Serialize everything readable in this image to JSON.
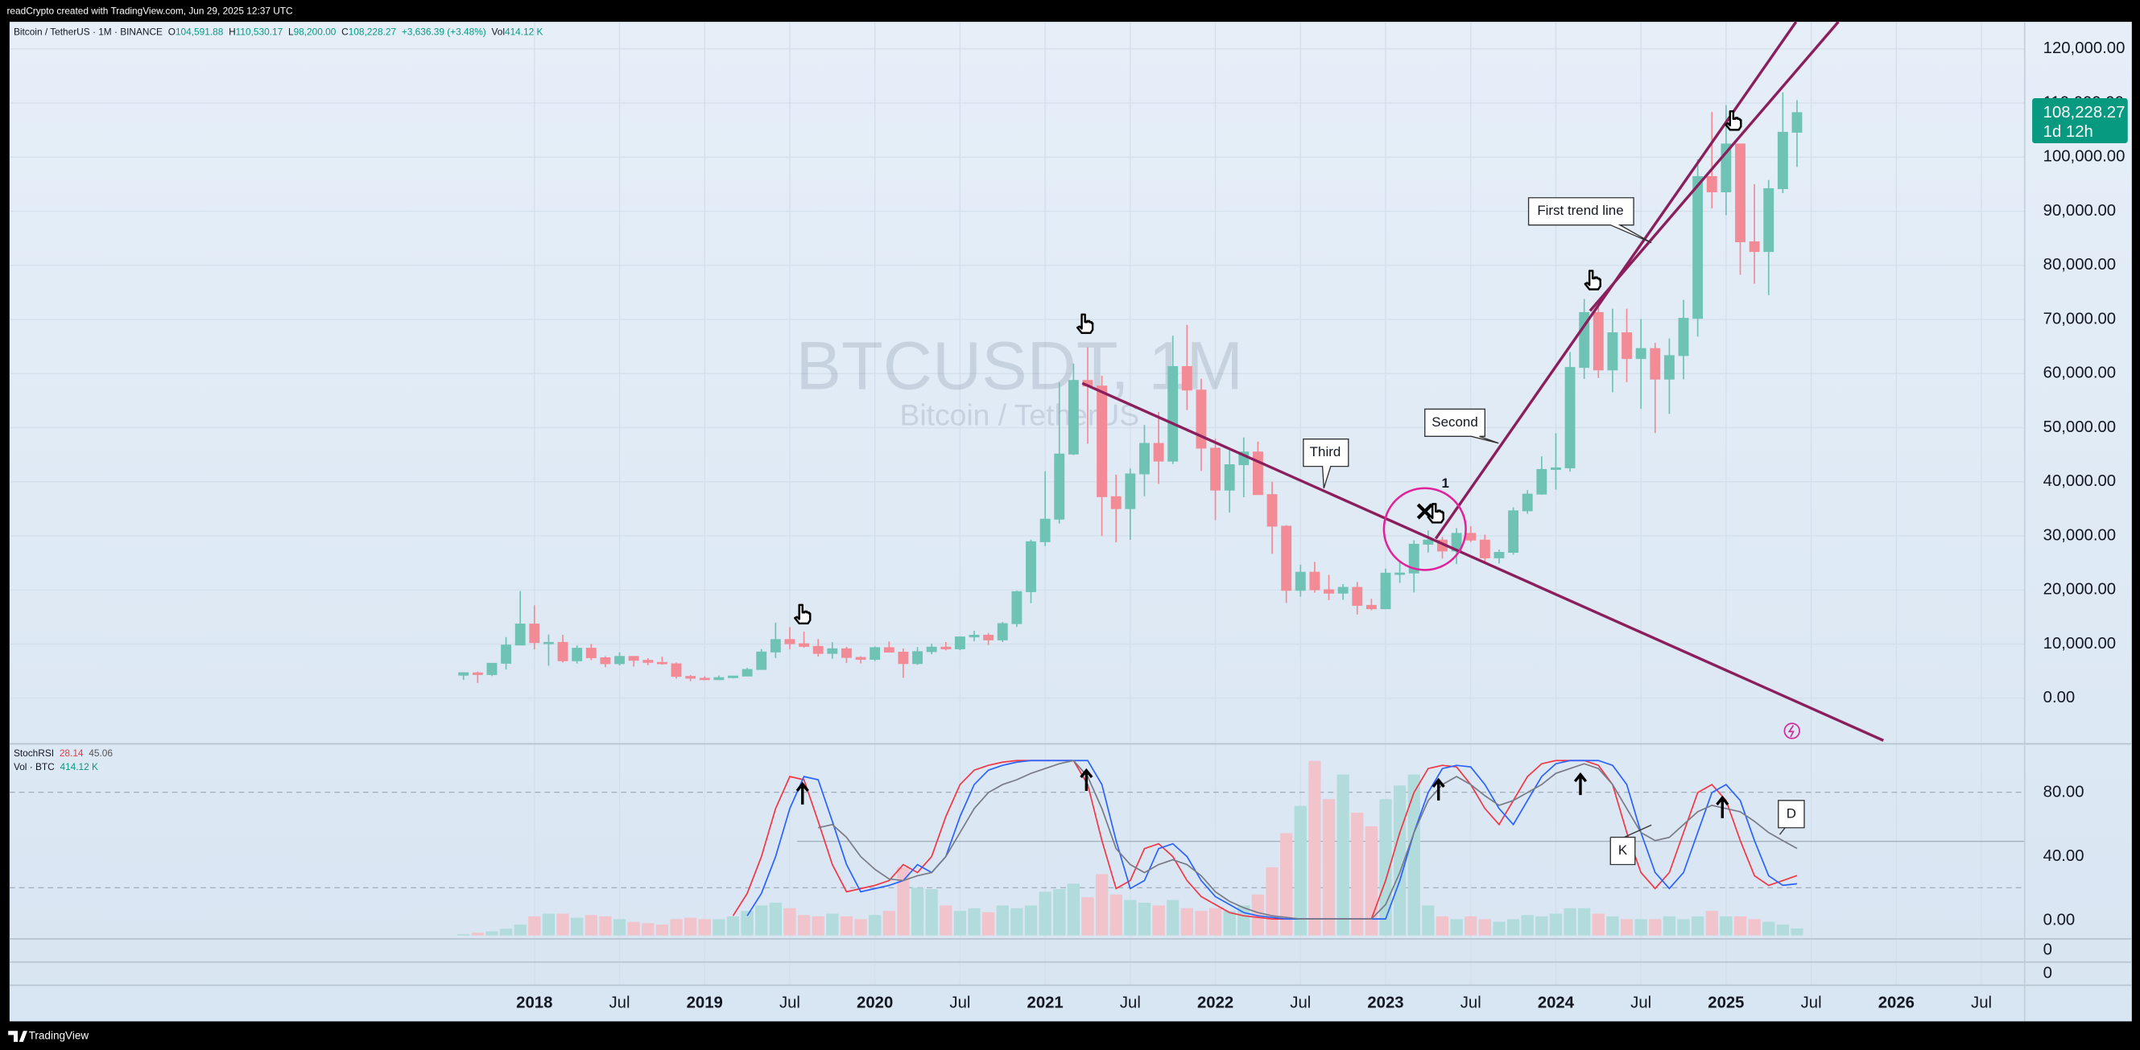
{
  "header": {
    "credit": "readCrypto created with TradingView.com, Jun 29, 2025 12:37 UTC",
    "brand": "TradingView"
  },
  "chart_data": [
    {
      "type": "candlestick",
      "title": "BTCUSDT, 1M",
      "subtitle": "Bitcoin / TetherUS",
      "legend": {
        "symbol": "Bitcoin / TetherUS · 1M · BINANCE",
        "items": [
          {
            "key": "O",
            "value": "104,591.88"
          },
          {
            "key": "H",
            "value": "110,530.17"
          },
          {
            "key": "L",
            "value": "98,200.00"
          },
          {
            "key": "C",
            "value": "108,228.27"
          }
        ],
        "change": "+3,636.39 (+3.48%)",
        "volume_key": "Vol"
      },
      "last_price_label": "108,228.27",
      "countdown": "1d 12h",
      "annotations": [
        {
          "text": "First trend line"
        },
        {
          "text": "Second"
        },
        {
          "text": "Third"
        },
        {
          "text": "1"
        }
      ],
      "x": [
        "2017-08",
        "2017-09",
        "2017-10",
        "2017-11",
        "2017-12",
        "2018-01",
        "2018-02",
        "2018-03",
        "2018-04",
        "2018-05",
        "2018-06",
        "2018-07",
        "2018-08",
        "2018-09",
        "2018-10",
        "2018-11",
        "2018-12",
        "2019-01",
        "2019-02",
        "2019-03",
        "2019-04",
        "2019-05",
        "2019-06",
        "2019-07",
        "2019-08",
        "2019-09",
        "2019-10",
        "2019-11",
        "2019-12",
        "2020-01",
        "2020-02",
        "2020-03",
        "2020-04",
        "2020-05",
        "2020-06",
        "2020-07",
        "2020-08",
        "2020-09",
        "2020-10",
        "2020-11",
        "2020-12",
        "2021-01",
        "2021-02",
        "2021-03",
        "2021-04",
        "2021-05",
        "2021-06",
        "2021-07",
        "2021-08",
        "2021-09",
        "2021-10",
        "2021-11",
        "2021-12",
        "2022-01",
        "2022-02",
        "2022-03",
        "2022-04",
        "2022-05",
        "2022-06",
        "2022-07",
        "2022-08",
        "2022-09",
        "2022-10",
        "2022-11",
        "2022-12",
        "2023-01",
        "2023-02",
        "2023-03",
        "2023-04",
        "2023-05",
        "2023-06",
        "2023-07",
        "2023-08",
        "2023-09",
        "2023-10",
        "2023-11",
        "2023-12",
        "2024-01",
        "2024-02",
        "2024-03",
        "2024-04",
        "2024-05",
        "2024-06",
        "2024-07",
        "2024-08",
        "2024-09",
        "2024-10",
        "2024-11",
        "2024-12",
        "2025-01",
        "2025-02",
        "2025-03",
        "2025-04",
        "2025-05",
        "2025-06"
      ],
      "open": [
        4261.48,
        4689.89,
        4378.49,
        6463,
        9837,
        13715.65,
        10285.1,
        10325.64,
        6922,
        9246.01,
        7485.01,
        6391.08,
        7735.67,
        7011.21,
        6626.57,
        6369.52,
        4041.27,
        3701.23,
        3434.1,
        3814.26,
        4102.44,
        5321.94,
        8555,
        10854.1,
        10080.53,
        9588.74,
        8289.97,
        9140.86,
        7540.63,
        7195.24,
        9351.71,
        8523.61,
        6412.14,
        8620,
        9448.27,
        9138.08,
        11335.46,
        11649.51,
        10776.59,
        13791,
        19695.87,
        28923.63,
        33092.97,
        45134.11,
        58739.46,
        57697.25,
        37254.24,
        35045,
        41461.84,
        47100.89,
        43820.01,
        61299.81,
        56950.56,
        46216.93,
        38466.9,
        43160,
        45510.35,
        37631.83,
        31801.05,
        19942.21,
        23296.36,
        20048.44,
        19422.61,
        20490.74,
        17165.53,
        16541.77,
        23125.13,
        23141.57,
        28465.36,
        29233.2,
        27210.36,
        30471.99,
        29232.26,
        25940.77,
        26962.57,
        34639.78,
        37723.97,
        42283.58,
        42580,
        61130.99,
        71280,
        60672.01,
        67540.01,
        62772.01,
        64628.01,
        58974,
        63327.6,
        70215.2,
        96407.99,
        93576,
        102429.56,
        84349.95,
        82550,
        94172,
        104591.88
      ],
      "high": [
        4745.42,
        4939.19,
        6470,
        11300,
        19798.68,
        17176.24,
        11786.01,
        11710,
        9759.82,
        10020,
        7754.89,
        8491.77,
        7750,
        7410,
        7680,
        6615.15,
        4312.99,
        4069.8,
        4198,
        4140,
        5600,
        9074.26,
        13970,
        13147.08,
        12325,
        10939.36,
        10370,
        9513.69,
        7750,
        9578,
        10500,
        9188,
        9460,
        10067,
        10380,
        11444,
        12468,
        12050.85,
        14100,
        19863.16,
        29300,
        41950,
        58352.8,
        61844,
        64854,
        59592.2,
        41330,
        42448,
        50500,
        52920,
        67000,
        69000,
        59053.55,
        47990,
        45821,
        48189.84,
        47444.11,
        40023.77,
        31982.97,
        24668,
        25211.32,
        22799,
        21085,
        21480.65,
        18387.95,
        23960.54,
        25250,
        29184.68,
        31000,
        29820,
        31431.94,
        31804.2,
        30244,
        27488,
        35280,
        38450,
        44700,
        48969.48,
        64000,
        73777,
        72797.99,
        71979,
        71997.02,
        70079.99,
        65659.78,
        66498,
        73620.12,
        99588.01,
        108353,
        109588,
        102500.01,
        95000,
        95758.04,
        111980,
        110530.17
      ],
      "low": [
        3400,
        2817,
        4110,
        5325,
        10400,
        9035,
        6000.01,
        6600.1,
        6430,
        7032.95,
        5750,
        6070,
        5880,
        6111,
        6205,
        3652.66,
        3156.26,
        3349.92,
        3373.1,
        3670.69,
        4067,
        5316.2,
        7444,
        9060,
        9320,
        7710,
        7300,
        6515,
        6435,
        6871.04,
        8445,
        3782.13,
        6150.11,
        8117,
        8833,
        8893.03,
        10518.5,
        9825,
        10374,
        13195.05,
        17572.33,
        28130,
        32296.16,
        44950.53,
        47044.01,
        30000,
        28805,
        29278,
        37332.7,
        39600,
        43283.03,
        53256.64,
        42000.3,
        32917.17,
        34322.28,
        37155,
        37578.2,
        26700,
        17622,
        18781,
        19520,
        18125.98,
        18190,
        15476,
        16256.3,
        16499.01,
        21351.07,
        19549.09,
        26942.82,
        25811.46,
        24800,
        28861.9,
        25166,
        24901,
        26538.66,
        34097.39,
        37617.42,
        38555,
        41884.28,
        59005,
        59191.6,
        56552.82,
        58402,
        53485.93,
        49000,
        52550,
        58946,
        66835,
        90500,
        89256.69,
        78258.52,
        76606,
        74508,
        93346,
        98200
      ],
      "close": [
        4724.89,
        4378.51,
        6463,
        9838.96,
        13716.36,
        10285.1,
        10326.5,
        6923.91,
        9246.01,
        7485.01,
        6390.07,
        7730.93,
        7011.21,
        6626.57,
        6371.93,
        4041.32,
        3702.9,
        3434.1,
        3813.69,
        4103.95,
        5320.81,
        8555,
        10854.1,
        10080.53,
        9588.74,
        8289.34,
        9140.85,
        7541.89,
        7195.23,
        9352.89,
        8523.61,
        6410.44,
        8620,
        9448.27,
        9138.55,
        11335.46,
        11649.51,
        10776.59,
        13791,
        19695.87,
        28923.63,
        33092.98,
        45135.66,
        58740.55,
        57694.27,
        37253.81,
        35045,
        41461.83,
        47100.89,
        43824.1,
        61299.8,
        56950.56,
        46216.93,
        38466.9,
        43160,
        45510.34,
        37630.8,
        31801.04,
        19942.21,
        23293.32,
        20050.02,
        19422.61,
        20490.74,
        17164.38,
        16542.4,
        23125.13,
        23141.57,
        28465.36,
        29233.21,
        27210.35,
        30472,
        29232.25,
        25940.78,
        26962.56,
        34639.77,
        37723.96,
        42283.58,
        42580,
        61130.98,
        71280.01,
        60672,
        67540.01,
        62772.01,
        64628,
        58973.99,
        63327.59,
        70215.19,
        96407.99,
        93576,
        102429.56,
        84349.94,
        82550.01,
        94172,
        104591.88,
        108228.27
      ],
      "up_color": "#6ec3b4",
      "down_color": "#f28b96",
      "xlim": [
        "2014-12",
        "2026-10"
      ],
      "xticks": [
        {
          "value": "2018-01",
          "label": "2018"
        },
        {
          "value": "2018-07",
          "label": "Jul"
        },
        {
          "value": "2019-01",
          "label": "2019"
        },
        {
          "value": "2019-07",
          "label": "Jul"
        },
        {
          "value": "2020-01",
          "label": "2020"
        },
        {
          "value": "2020-07",
          "label": "Jul"
        },
        {
          "value": "2021-01",
          "label": "2021"
        },
        {
          "value": "2021-07",
          "label": "Jul"
        },
        {
          "value": "2022-01",
          "label": "2022"
        },
        {
          "value": "2022-07",
          "label": "Jul"
        },
        {
          "value": "2023-01",
          "label": "2023"
        },
        {
          "value": "2023-07",
          "label": "Jul"
        },
        {
          "value": "2024-01",
          "label": "2024"
        },
        {
          "value": "2024-07",
          "label": "Jul"
        },
        {
          "value": "2025-01",
          "label": "2025"
        },
        {
          "value": "2025-07",
          "label": "Jul"
        },
        {
          "value": "2026-01",
          "label": "2026"
        },
        {
          "value": "2026-07",
          "label": "Jul"
        }
      ],
      "ylim": [
        -8300,
        125000
      ],
      "yticks": [
        {
          "value": 0,
          "label": "0.00"
        },
        {
          "value": 10000,
          "label": "10,000.00"
        },
        {
          "value": 20000,
          "label": "20,000.00"
        },
        {
          "value": 30000,
          "label": "30,000.00"
        },
        {
          "value": 40000,
          "label": "40,000.00"
        },
        {
          "value": 50000,
          "label": "50,000.00"
        },
        {
          "value": 60000,
          "label": "60,000.00"
        },
        {
          "value": 70000,
          "label": "70,000.00"
        },
        {
          "value": 80000,
          "label": "80,000.00"
        },
        {
          "value": 90000,
          "label": "90,000.00"
        },
        {
          "value": 100000,
          "label": "100,000.00"
        },
        {
          "value": 110000,
          "label": "110,000.00"
        },
        {
          "value": 120000,
          "label": "120,000.00"
        }
      ],
      "grid": true
    },
    {
      "type": "line",
      "title": "StochRSI",
      "series": [
        {
          "name": "K",
          "color": "#f23645",
          "values": [
            null,
            null,
            null,
            null,
            null,
            null,
            null,
            null,
            null,
            null,
            null,
            null,
            null,
            null,
            null,
            null,
            null,
            null,
            null,
            3,
            17,
            40,
            70,
            90,
            88,
            62,
            35,
            18,
            20,
            22,
            25,
            35,
            30,
            40,
            65,
            85,
            94,
            97,
            99,
            100,
            100,
            100,
            100,
            100,
            85,
            50,
            20,
            25,
            45,
            48,
            40,
            25,
            15,
            10,
            5,
            3,
            2,
            1,
            1,
            1,
            1,
            1,
            1,
            1,
            1,
            25,
            55,
            80,
            95,
            97,
            96,
            85,
            70,
            60,
            75,
            90,
            98,
            100,
            100,
            100,
            97,
            85,
            55,
            30,
            20,
            30,
            55,
            80,
            85,
            75,
            50,
            28,
            22,
            25,
            28.14
          ]
        },
        {
          "color": "#2962ff",
          "values": [
            null,
            null,
            null,
            null,
            null,
            null,
            null,
            null,
            null,
            null,
            null,
            null,
            null,
            null,
            null,
            null,
            null,
            null,
            null,
            null,
            3,
            17,
            40,
            70,
            90,
            88,
            62,
            35,
            18,
            20,
            22,
            25,
            35,
            30,
            40,
            65,
            85,
            94,
            97,
            99,
            100,
            100,
            100,
            100,
            100,
            85,
            50,
            20,
            25,
            45,
            48,
            40,
            25,
            15,
            10,
            5,
            3,
            2,
            1,
            1,
            1,
            1,
            1,
            1,
            1,
            1,
            25,
            55,
            80,
            95,
            97,
            96,
            85,
            70,
            60,
            75,
            90,
            98,
            100,
            100,
            100,
            97,
            85,
            55,
            30,
            20,
            30,
            55,
            80,
            85,
            75,
            50,
            28,
            22,
            23
          ]
        },
        {
          "name": "D",
          "color": "#787b86",
          "values": [
            null,
            null,
            null,
            null,
            null,
            null,
            null,
            null,
            null,
            null,
            null,
            null,
            null,
            null,
            null,
            null,
            null,
            null,
            null,
            null,
            null,
            null,
            null,
            null,
            null,
            58,
            60,
            52,
            40,
            32,
            26,
            25,
            28,
            30,
            40,
            55,
            70,
            80,
            85,
            88,
            92,
            95,
            98,
            100,
            90,
            70,
            45,
            35,
            30,
            35,
            38,
            35,
            28,
            18,
            12,
            8,
            5,
            3,
            2,
            1,
            1,
            1,
            1,
            1,
            1,
            10,
            30,
            55,
            75,
            85,
            90,
            85,
            78,
            72,
            75,
            80,
            85,
            92,
            95,
            98,
            95,
            85,
            70,
            55,
            50,
            52,
            60,
            68,
            72,
            70,
            68,
            62,
            55,
            50,
            45.06
          ]
        }
      ],
      "ylim": [
        -11,
        110
      ],
      "yticks": [
        {
          "value": 0,
          "label": "0.00"
        },
        {
          "value": 40,
          "label": "40.00"
        },
        {
          "value": 80,
          "label": "80.00"
        }
      ]
    },
    {
      "type": "bar",
      "title": "Vol · BTC",
      "last_value_label": "414.12 K",
      "up_color": "#b2dcdc",
      "down_color": "#f1c4cb",
      "values": [
        80000,
        160000,
        240000,
        400000,
        640000,
        1120000,
        1280000,
        1280000,
        1040000,
        1200000,
        1120000,
        960000,
        800000,
        720000,
        640000,
        960000,
        1040000,
        960000,
        960000,
        1120000,
        1440000,
        1760000,
        1920000,
        1600000,
        1200000,
        1120000,
        1280000,
        1120000,
        960000,
        1200000,
        1440000,
        4000000,
        2800000,
        2720000,
        1760000,
        1440000,
        1600000,
        1360000,
        1760000,
        1600000,
        1760000,
        2560000,
        2720000,
        3040000,
        2240000,
        3600000,
        2400000,
        2080000,
        1920000,
        1760000,
        2080000,
        1600000,
        1440000,
        1600000,
        1440000,
        1760000,
        2400000,
        4000000,
        6000000,
        7600000,
        10240000,
        8000000,
        9440000,
        7200000,
        6400000,
        8000000,
        8800000,
        9440000,
        1760000,
        1120000,
        960000,
        1120000,
        960000,
        800000,
        960000,
        1200000,
        1120000,
        1280000,
        1600000,
        1600000,
        1280000,
        1120000,
        960000,
        960000,
        960000,
        1120000,
        960000,
        1120000,
        1440000,
        1120000,
        1120000,
        960000,
        800000,
        640000,
        414120
      ]
    }
  ],
  "extra_panes": [
    {
      "label": "0"
    },
    {
      "label": "0"
    }
  ]
}
